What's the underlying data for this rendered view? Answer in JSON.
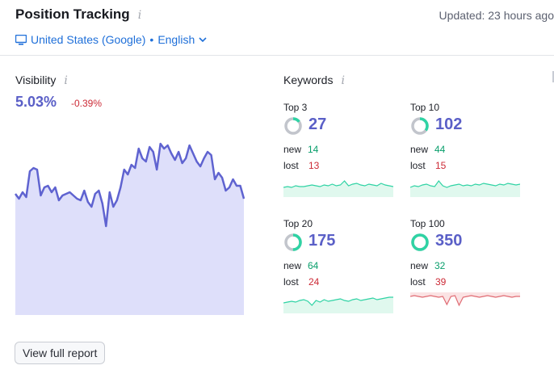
{
  "header": {
    "title": "Position Tracking",
    "updated": "Updated: 23 hours ago",
    "location": "United States (Google)",
    "separator": "•",
    "language": "English"
  },
  "visibility": {
    "label": "Visibility",
    "value": "5.03%",
    "delta": "-0.39%"
  },
  "keywords": {
    "label": "Keywords",
    "buckets": [
      {
        "label": "Top 3",
        "count": "27",
        "new_label": "new",
        "new": "14",
        "lost_label": "lost",
        "lost": "13",
        "fill": 0.15,
        "trend": "positive"
      },
      {
        "label": "Top 10",
        "count": "102",
        "new_label": "new",
        "new": "44",
        "lost_label": "lost",
        "lost": "15",
        "fill": 0.35,
        "trend": "positive"
      },
      {
        "label": "Top 20",
        "count": "175",
        "new_label": "new",
        "new": "64",
        "lost_label": "lost",
        "lost": "24",
        "fill": 0.5,
        "trend": "positive"
      },
      {
        "label": "Top 100",
        "count": "350",
        "new_label": "new",
        "new": "32",
        "lost_label": "lost",
        "lost": "39",
        "fill": 1.0,
        "trend": "negative"
      }
    ]
  },
  "actions": {
    "view_full_report": "View full report"
  },
  "colors": {
    "accent": "#5a5fc7",
    "positive": "#089e6b",
    "negative": "#cc2a36",
    "link": "#1e6fd9",
    "ring_track": "#c2c5cc",
    "ring_fill": "#2fd3a4",
    "chart_line": "#5f63d0",
    "chart_fill": "#dedffa",
    "spark_pos_line": "#2fd3a4",
    "spark_pos_fill": "#e0f8ee",
    "spark_neg_line": "#e06b73",
    "spark_neg_fill": "#fbe3e4"
  },
  "icons": {
    "monitor": "monitor-icon",
    "info": "info-icon",
    "chevron": "chevron-down-icon"
  }
}
